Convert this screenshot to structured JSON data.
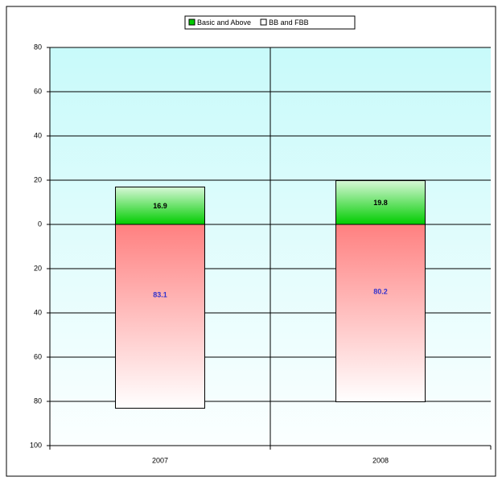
{
  "chart_data": {
    "type": "bar",
    "stacked": true,
    "categories": [
      "2007",
      "2008"
    ],
    "series": [
      {
        "name": "Basic and Above",
        "color": "#00cc00",
        "values": [
          16.9,
          19.8
        ]
      },
      {
        "name": "BB and FBB",
        "color": "#ff8080",
        "values": [
          -83.1,
          -80.2
        ],
        "value_labels": [
          "83.1",
          "80.2"
        ]
      }
    ],
    "ylim": [
      -100,
      80
    ],
    "yticks": [
      {
        "value": -100,
        "label": "100"
      },
      {
        "value": -80,
        "label": "80"
      },
      {
        "value": -60,
        "label": "60"
      },
      {
        "value": -40,
        "label": "40"
      },
      {
        "value": -20,
        "label": "20"
      },
      0,
      20,
      40,
      60,
      80
    ],
    "grid": true,
    "legend": "top"
  }
}
